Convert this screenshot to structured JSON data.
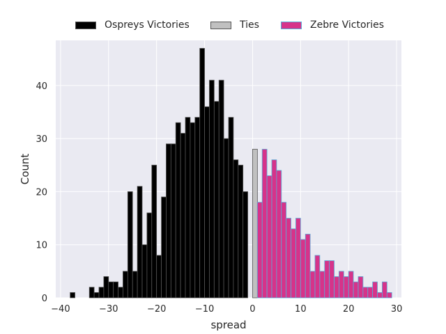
{
  "chart_data": {
    "type": "bar",
    "title": "",
    "xlabel": "spread",
    "ylabel": "Count",
    "xlim": [
      -41,
      31
    ],
    "ylim": [
      0,
      48.5
    ],
    "xticks": [
      -40,
      -30,
      -20,
      -10,
      0,
      10,
      20,
      30
    ],
    "xtick_labels": [
      "−40",
      "−30",
      "−20",
      "−10",
      "0",
      "10",
      "20",
      "30"
    ],
    "yticks": [
      0,
      10,
      20,
      30,
      40
    ],
    "ytick_labels": [
      "0",
      "10",
      "20",
      "30",
      "40"
    ],
    "grid": true,
    "legend_position": "top-center",
    "bin_width": 1,
    "series": [
      {
        "name": "Ospreys Victories",
        "color": "#000000",
        "edgecolor": "#555555",
        "x": [
          -38,
          -37,
          -36,
          -35,
          -34,
          -33,
          -32,
          -31,
          -30,
          -29,
          -28,
          -27,
          -26,
          -25,
          -24,
          -23,
          -22,
          -21,
          -20,
          -19,
          -18,
          -17,
          -16,
          -15,
          -14,
          -13,
          -12,
          -11,
          -10,
          -9,
          -8,
          -7,
          -6,
          -5,
          -4,
          -3,
          -2,
          -1
        ],
        "values": [
          1,
          0,
          0,
          0,
          2,
          1,
          2,
          4,
          3,
          3,
          2,
          5,
          20,
          5,
          21,
          10,
          16,
          25,
          8,
          19,
          29,
          29,
          33,
          31,
          34,
          33,
          34,
          47,
          36,
          41,
          37,
          41,
          30,
          34,
          26,
          25,
          20,
          0
        ]
      },
      {
        "name": "Ties",
        "color": "#c0c0c0",
        "edgecolor": "#555555",
        "x": [
          0
        ],
        "values": [
          28
        ]
      },
      {
        "name": "Zebre Victories",
        "color": "#d6338a",
        "edgecolor": "#5aaed8",
        "x": [
          1,
          2,
          3,
          4,
          5,
          6,
          7,
          8,
          9,
          10,
          11,
          12,
          13,
          14,
          15,
          16,
          17,
          18,
          19,
          20,
          21,
          22,
          23,
          24,
          25,
          26,
          27,
          28
        ],
        "values": [
          18,
          28,
          23,
          26,
          24,
          18,
          15,
          13,
          15,
          11,
          12,
          5,
          8,
          5,
          7,
          7,
          4,
          5,
          4,
          5,
          3,
          4,
          2,
          2,
          3,
          1,
          3,
          1
        ]
      }
    ]
  },
  "colors": {
    "plot_background": "#eaeaf2",
    "grid": "#ffffff",
    "text": "#262626"
  }
}
